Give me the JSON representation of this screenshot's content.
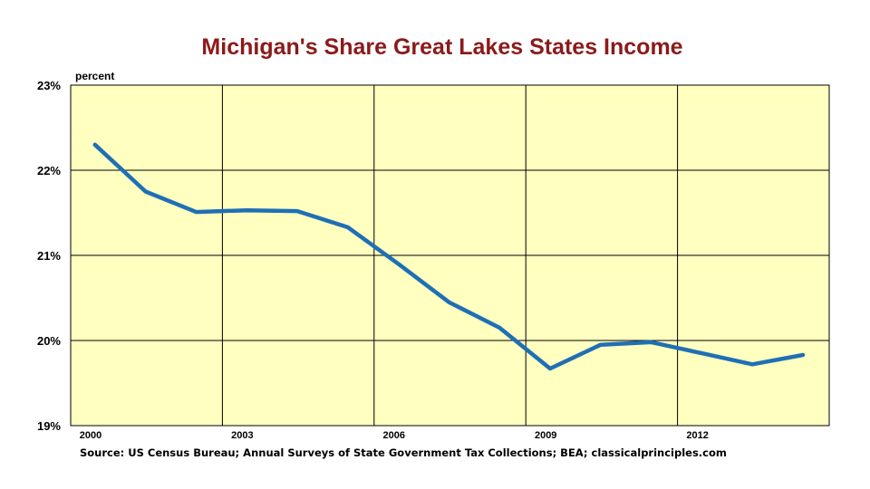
{
  "chart_data": {
    "type": "line",
    "title": "Michigan's Share Great Lakes States Income",
    "ylabel": "percent",
    "xlabel": "",
    "source": "Source: US Census Bureau; Annual Surveys of State Government Tax Collections; BEA; classicalprinciples.com",
    "ylim": [
      19,
      23
    ],
    "xlim": [
      2000,
      2015
    ],
    "y_ticks": [
      19,
      20,
      21,
      22,
      23
    ],
    "y_tick_labels": [
      "19%",
      "20%",
      "21%",
      "22%",
      "23%"
    ],
    "x_ticks": [
      2000,
      2003,
      2006,
      2009,
      2012
    ],
    "x_tick_labels": [
      "2000",
      "2003",
      "2006",
      "2009",
      "2012"
    ],
    "grid": true,
    "plot_background": "#ffffc0",
    "series": [
      {
        "color": "#1f6fb5",
        "x": [
          2000,
          2001,
          2002,
          2003,
          2004,
          2005,
          2006,
          2007,
          2008,
          2009,
          2010,
          2011,
          2012,
          2013,
          2014
        ],
        "values": [
          22.3,
          21.75,
          21.51,
          21.53,
          21.52,
          21.33,
          20.9,
          20.45,
          20.15,
          19.67,
          19.95,
          19.98,
          19.85,
          19.72,
          19.83
        ]
      }
    ]
  }
}
